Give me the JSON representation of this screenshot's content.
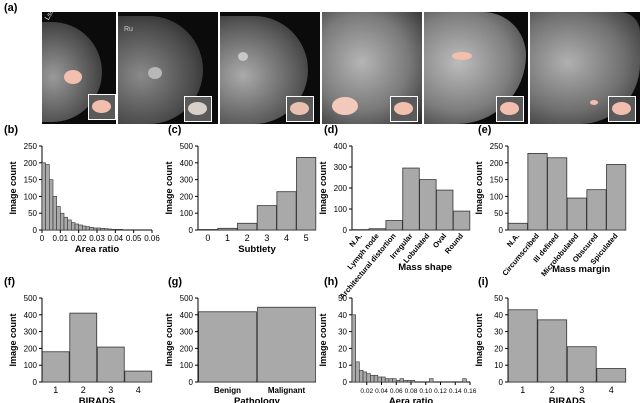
{
  "panel_labels": [
    "(a)",
    "(b)",
    "(c)",
    "(d)",
    "(e)",
    "(f)",
    "(g)",
    "(h)",
    "(i)"
  ],
  "tile_marks": [
    "Lssa6",
    "Ru",
    "",
    "",
    "",
    ""
  ],
  "colors": {
    "bar": "#a9a9a9",
    "bar_stroke": "#333333",
    "axis": "#000000",
    "mass_overlay": "#f2bfae",
    "tile_bg": "#0b0b0b"
  },
  "chart_data": [
    {
      "type": "bar",
      "id": "b",
      "xlabel": "Area ratio",
      "ylabel": "Image count",
      "ylim": [
        0,
        250
      ],
      "yticks": [
        0,
        50,
        100,
        150,
        200,
        250
      ],
      "xlim": [
        0,
        0.06
      ],
      "xticks": [
        0,
        0.01,
        0.02,
        0.03,
        0.04,
        0.05,
        0.06
      ],
      "xtick_labels": [
        "0",
        "0.01",
        "0.02",
        "0.03",
        "0.04",
        "0.05",
        "0.06"
      ],
      "bin_width": 0.002,
      "bins_start": [
        0,
        0.002,
        0.004,
        0.006,
        0.008,
        0.01,
        0.012,
        0.014,
        0.016,
        0.018,
        0.02,
        0.022,
        0.024,
        0.026,
        0.028,
        0.03,
        0.032,
        0.034,
        0.036,
        0.038,
        0.04,
        0.042
      ],
      "values": [
        200,
        195,
        150,
        100,
        70,
        50,
        38,
        30,
        22,
        18,
        15,
        12,
        10,
        8,
        6,
        6,
        5,
        4,
        3,
        2,
        2,
        2
      ]
    },
    {
      "type": "bar",
      "id": "c",
      "xlabel": "Subtlety",
      "ylabel": "Image count",
      "ylim": [
        0,
        500
      ],
      "yticks": [
        0,
        100,
        200,
        300,
        400,
        500
      ],
      "categories": [
        "0",
        "1",
        "2",
        "3",
        "4",
        "5"
      ],
      "values": [
        3,
        10,
        40,
        145,
        228,
        432
      ]
    },
    {
      "type": "bar",
      "id": "d",
      "xlabel": "Mass shape",
      "ylabel": "Image count",
      "ylim": [
        0,
        400
      ],
      "yticks": [
        0,
        100,
        200,
        300,
        400
      ],
      "categories": [
        "N.A.",
        "Lymph node",
        "Architectural distortion",
        "Irregular",
        "Lobulated",
        "Oval",
        "Round"
      ],
      "values": [
        2,
        6,
        45,
        295,
        240,
        190,
        90
      ]
    },
    {
      "type": "bar",
      "id": "e",
      "xlabel": "Mass margin",
      "ylabel": "Image count",
      "ylim": [
        0,
        250
      ],
      "yticks": [
        0,
        50,
        100,
        150,
        200,
        250
      ],
      "categories": [
        "N.A.",
        "Circumscribed",
        "Ill defined",
        "Microlobulated",
        "Obscured",
        "Spiculated"
      ],
      "values": [
        20,
        228,
        215,
        95,
        120,
        195
      ]
    },
    {
      "type": "bar",
      "id": "f",
      "xlabel": "BIRADS",
      "ylabel": "Image count",
      "ylim": [
        0,
        500
      ],
      "yticks": [
        0,
        100,
        200,
        300,
        400,
        500
      ],
      "categories": [
        "1",
        "2",
        "3",
        "4"
      ],
      "values": [
        180,
        410,
        208,
        65
      ]
    },
    {
      "type": "bar",
      "id": "g",
      "xlabel": "Pathology",
      "ylabel": "Image count",
      "ylim": [
        0,
        500
      ],
      "yticks": [
        0,
        100,
        200,
        300,
        400,
        500
      ],
      "categories": [
        "Benign",
        "Malignant"
      ],
      "values": [
        418,
        445
      ]
    },
    {
      "type": "bar",
      "id": "h",
      "xlabel": "Aera ratio",
      "ylabel": "Image count",
      "ylim": [
        0,
        50
      ],
      "yticks": [
        0,
        10,
        20,
        30,
        40,
        50
      ],
      "xlim": [
        0,
        0.16
      ],
      "xticks": [
        0.02,
        0.04,
        0.06,
        0.08,
        0.1,
        0.12,
        0.14,
        0.16
      ],
      "xtick_labels": [
        "0.02",
        "0.04",
        "0.06",
        "0.08",
        "0.10",
        "0.12",
        "0.14",
        "0.16"
      ],
      "bin_width": 0.005,
      "bins_start": [
        0,
        0.005,
        0.01,
        0.015,
        0.02,
        0.025,
        0.03,
        0.035,
        0.04,
        0.045,
        0.05,
        0.055,
        0.06,
        0.065,
        0.07,
        0.075,
        0.08,
        0.105,
        0.15
      ],
      "values": [
        40,
        12,
        7,
        6,
        5,
        4,
        4,
        3,
        3,
        2,
        2,
        2,
        1,
        2,
        1,
        1,
        1,
        2,
        2
      ]
    },
    {
      "type": "bar",
      "id": "i",
      "xlabel": "BIRADS",
      "ylabel": "Image count",
      "ylim": [
        0,
        50
      ],
      "yticks": [
        0,
        10,
        20,
        30,
        40,
        50
      ],
      "categories": [
        "1",
        "2",
        "3",
        "4"
      ],
      "values": [
        43,
        37,
        21,
        8
      ]
    }
  ]
}
